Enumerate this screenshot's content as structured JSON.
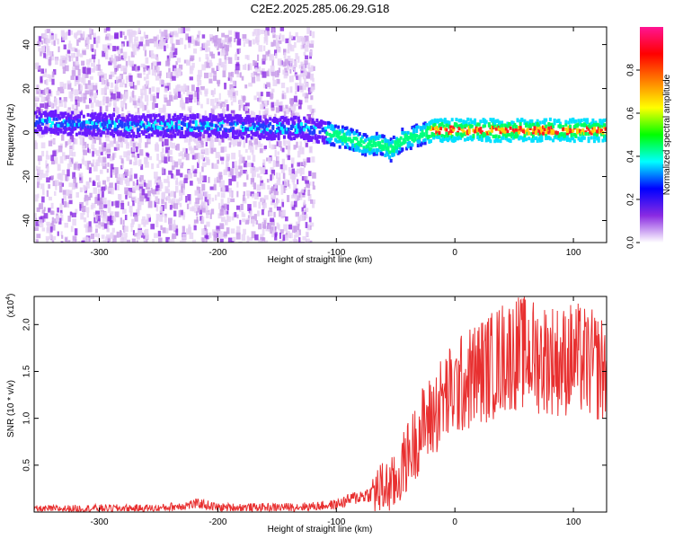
{
  "title": "C2E2.2025.285.06.29.G18",
  "chart_data": [
    {
      "type": "heatmap",
      "xlabel": "Height of straight line (km)",
      "ylabel": "Frequency (Hz)",
      "xlim": [
        -355,
        128
      ],
      "ylim": [
        -50,
        48
      ],
      "x_ticks": [
        -300,
        -200,
        -100,
        0,
        100
      ],
      "x_tick_labels": [
        "-300",
        "-200",
        "-100",
        "0",
        "100"
      ],
      "y_ticks": [
        -40,
        -20,
        0,
        20,
        40
      ],
      "y_tick_labels": [
        "-40",
        "-20",
        "0",
        "20",
        "40"
      ],
      "colorbar": {
        "label": "Normalized spectral amplitude",
        "range": [
          0,
          1
        ],
        "ticks": [
          0,
          0.2,
          0.4,
          0.6,
          0.8
        ],
        "tick_labels": [
          "0.0",
          "0.2",
          "0.4",
          "0.6",
          "0.8"
        ],
        "colors": [
          "#ffffff",
          "#8a2be2",
          "#0000ff",
          "#00ffff",
          "#00ff00",
          "#ffff00",
          "#ff7f00",
          "#ff0000",
          "#ff1493"
        ]
      },
      "ridge": {
        "x": [
          -355,
          -320,
          -280,
          -240,
          -200,
          -160,
          -130,
          -110,
          -90,
          -75,
          -65,
          -55,
          -45,
          -35,
          -20,
          0,
          30,
          60,
          90,
          128
        ],
        "y": [
          5,
          4,
          3,
          3,
          3,
          2,
          2,
          0,
          -3,
          -6,
          -5,
          -8,
          -3,
          -2,
          1,
          1,
          1,
          1,
          1,
          1
        ]
      },
      "scatter_region": {
        "x_start": -355,
        "x_end": -120,
        "y_range": [
          -50,
          48
        ]
      }
    },
    {
      "type": "line",
      "xlabel": "Height of straight line (km)",
      "ylabel": "SNR (10 * v/v)",
      "y_multiplier": "(x10",
      "y_multiplier_exp": "4",
      "y_multiplier_close": ")",
      "xlim": [
        -355,
        128
      ],
      "ylim": [
        0,
        2.3
      ],
      "x_ticks": [
        -300,
        -200,
        -100,
        0,
        100
      ],
      "x_tick_labels": [
        "-300",
        "-200",
        "-100",
        "0",
        "100"
      ],
      "y_ticks": [
        0.5,
        1.0,
        1.5,
        2.0
      ],
      "y_tick_labels": [
        "0.5",
        "1.0",
        "1.5",
        "2.0"
      ],
      "series": [
        {
          "color": "#e83030",
          "x": [
            -355,
            -300,
            -250,
            -215,
            -200,
            -150,
            -120,
            -100,
            -85,
            -70,
            -60,
            -50,
            -45,
            -40,
            -35,
            -30,
            -25,
            -20,
            -15,
            -10,
            -5,
            0,
            10,
            20,
            30,
            40,
            50,
            60,
            70,
            80,
            90,
            100,
            110,
            120,
            128
          ],
          "y": [
            0.03,
            0.04,
            0.04,
            0.09,
            0.05,
            0.05,
            0.06,
            0.08,
            0.15,
            0.2,
            0.25,
            0.3,
            0.45,
            0.6,
            0.7,
            0.85,
            0.95,
            1.0,
            1.1,
            1.2,
            1.25,
            1.3,
            1.4,
            1.5,
            1.55,
            1.65,
            1.7,
            1.7,
            1.65,
            1.65,
            1.6,
            1.65,
            1.6,
            1.55,
            1.5
          ]
        }
      ]
    }
  ]
}
